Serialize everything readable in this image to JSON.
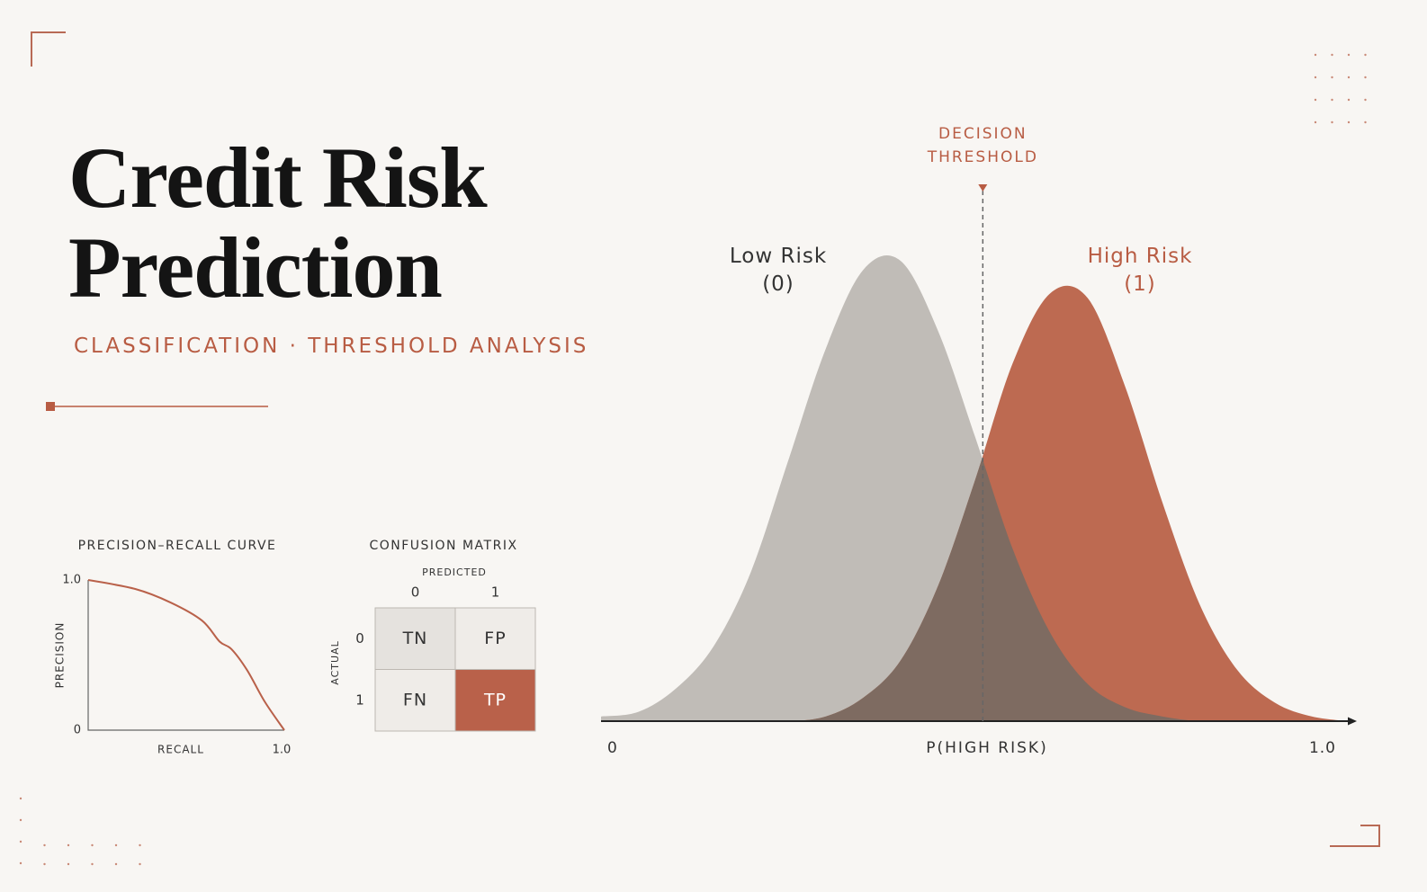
{
  "header": {
    "title": "Credit Risk Prediction",
    "subtitle": "CLASSIFICATION · THRESHOLD ANALYSIS"
  },
  "chart_data": [
    {
      "type": "area",
      "x_label": "P(HIGH RISK)",
      "threshold": 0.51,
      "threshold_label": "DECISION THRESHOLD",
      "x": [
        0,
        0.05,
        0.1,
        0.15,
        0.2,
        0.25,
        0.3,
        0.35,
        0.4,
        0.45,
        0.5,
        0.55,
        0.6,
        0.65,
        0.7,
        0.75,
        0.8,
        0.85,
        0.9,
        0.95,
        1
      ],
      "series": [
        {
          "name": "Low Risk (0)",
          "color": "#c0bcb7",
          "values": [
            0.01,
            0.02,
            0.07,
            0.16,
            0.32,
            0.56,
            0.8,
            0.97,
            0.99,
            0.84,
            0.61,
            0.37,
            0.19,
            0.08,
            0.03,
            0.01,
            0,
            0,
            0,
            0,
            0
          ]
        },
        {
          "name": "High Risk (1)",
          "color": "#bd6a51",
          "values": [
            0,
            0,
            0,
            0,
            0,
            0,
            0.01,
            0.05,
            0.13,
            0.29,
            0.52,
            0.77,
            0.92,
            0.91,
            0.72,
            0.47,
            0.25,
            0.11,
            0.04,
            0.01,
            0
          ]
        }
      ],
      "overlap_color": "#7e6b61",
      "xlim": [
        0,
        1
      ],
      "ylim": [
        0,
        1.05
      ],
      "xticks": [
        0,
        {
          "value": 1,
          "label": "1.0"
        }
      ]
    },
    {
      "type": "line",
      "title": "PRECISION–RECALL CURVE",
      "x_label": "RECALL",
      "y_label": "PRECISION",
      "color": "#b9614a",
      "x": [
        0,
        0.24,
        0.42,
        0.58,
        0.67,
        0.73,
        0.81,
        0.9,
        1
      ],
      "values": [
        1,
        0.94,
        0.85,
        0.73,
        0.59,
        0.54,
        0.4,
        0.19,
        0
      ],
      "xlim": [
        0,
        1
      ],
      "ylim": [
        0,
        1
      ],
      "xticks": [
        {
          "value": 1,
          "label": "1.0"
        }
      ],
      "yticks": [
        0,
        {
          "value": 1,
          "label": "1.0"
        }
      ]
    }
  ],
  "confusion_matrix": {
    "title": "CONFUSION MATRIX",
    "predicted_label": "PREDICTED",
    "actual_label": "ACTUAL",
    "columns": [
      "0",
      "1"
    ],
    "rows": [
      "0",
      "1"
    ],
    "cells": [
      [
        "TN",
        "FP"
      ],
      [
        "FN",
        "TP"
      ]
    ]
  }
}
